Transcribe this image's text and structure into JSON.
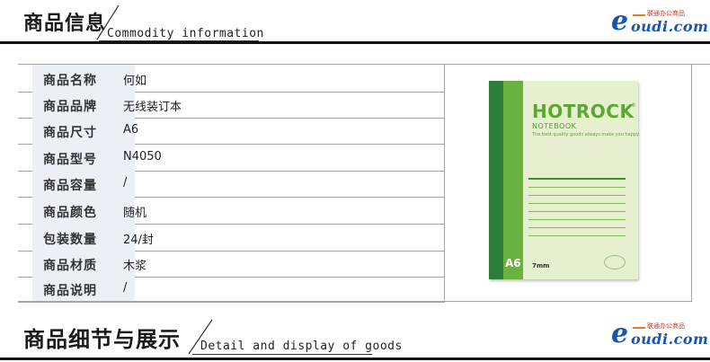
{
  "section1": {
    "title_zh": "商品信息",
    "title_en": "Commodity information"
  },
  "section2": {
    "title_zh": "商品细节与展示",
    "title_en": "Detail and display of goods"
  },
  "logo": {
    "e": "e",
    "rest": "oudi.com",
    "tag": "联通办公商品"
  },
  "specs": [
    {
      "label": "商品名称",
      "value": "何如"
    },
    {
      "label": "商品品牌",
      "value": "无线装订本"
    },
    {
      "label": "商品尺寸",
      "value": "A6"
    },
    {
      "label": "商品型号",
      "value": "N4050"
    },
    {
      "label": "商品容量",
      "value": "/"
    },
    {
      "label": "商品颜色",
      "value": "随机"
    },
    {
      "label": "包装数量",
      "value": "24/封"
    },
    {
      "label": "商品材质",
      "value": "木浆"
    },
    {
      "label": "商品说明",
      "value": "/"
    }
  ],
  "notebook": {
    "brand": "HOTROCK",
    "reg": "®",
    "subtitle": "NOTEBOOK",
    "slogan": "The best quality goods always make you happy.",
    "size": "A6",
    "line_spacing": "7mm"
  },
  "colors": {
    "spine_dark": "#2c7f3a",
    "spine_light": "#6ab23e",
    "cover": "#e6f0cf",
    "logo_blue": "#1a56b0"
  }
}
